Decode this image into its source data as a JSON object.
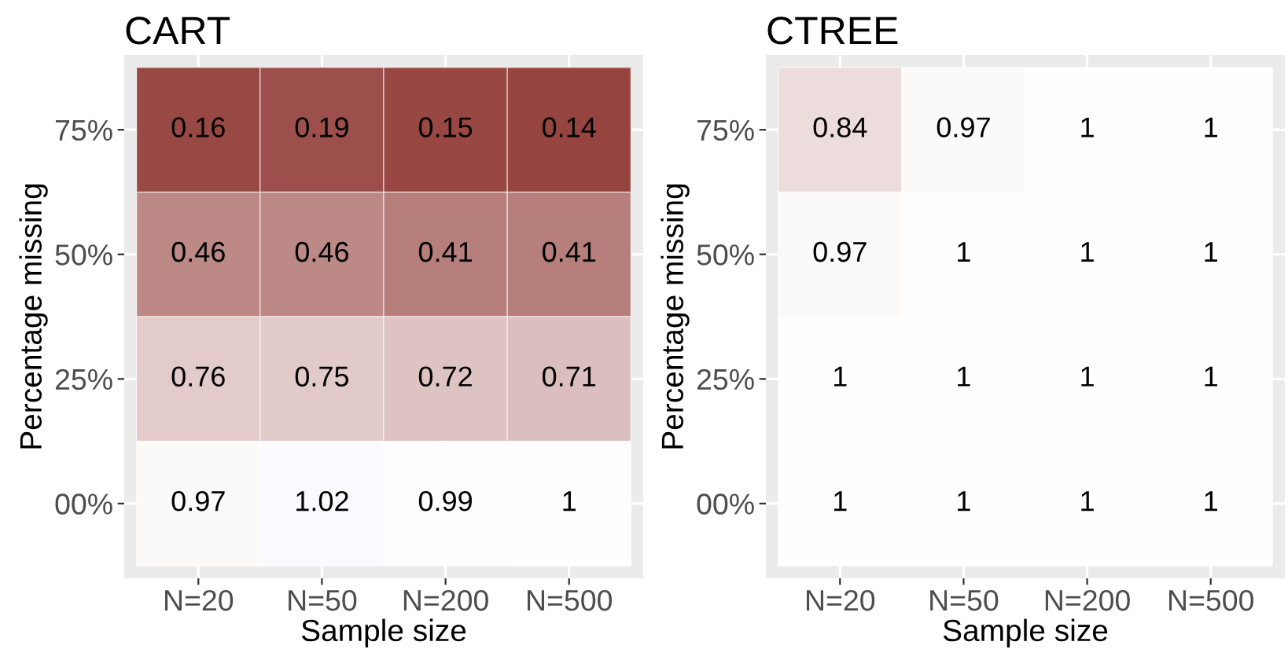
{
  "chart_data": [
    {
      "type": "heatmap",
      "title": "CART",
      "xlabel": "Sample size",
      "ylabel": "Percentage missing",
      "categories": [
        "N=20",
        "N=50",
        "N=200",
        "N=500"
      ],
      "y_categories": [
        "75%",
        "50%",
        "25%",
        "00%"
      ],
      "cells": [
        [
          0.16,
          0.19,
          0.15,
          0.14
        ],
        [
          0.46,
          0.46,
          0.41,
          0.41
        ],
        [
          0.76,
          0.75,
          0.72,
          0.71
        ],
        [
          0.97,
          1.02,
          0.99,
          1
        ]
      ],
      "data_labels": true,
      "grid": true
    },
    {
      "type": "heatmap",
      "title": "CTREE",
      "xlabel": "Sample size",
      "ylabel": "Percentage missing",
      "categories": [
        "N=20",
        "N=50",
        "N=200",
        "N=500"
      ],
      "y_categories": [
        "75%",
        "50%",
        "25%",
        "00%"
      ],
      "cells": [
        [
          0.84,
          0.97,
          1,
          1
        ],
        [
          0.97,
          1,
          1,
          1
        ],
        [
          1,
          1,
          1,
          1
        ],
        [
          1,
          1,
          1,
          1
        ]
      ],
      "data_labels": true,
      "grid": true
    }
  ]
}
